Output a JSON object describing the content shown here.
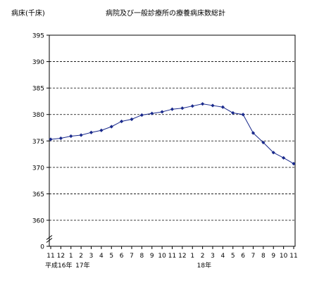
{
  "chart_data": {
    "type": "line",
    "title": "病院及び一般診療所の療養病床数総計",
    "ylabel": "病床(千床)",
    "xlabel": "",
    "categories": [
      "11",
      "12",
      "1",
      "2",
      "3",
      "4",
      "5",
      "6",
      "7",
      "8",
      "9",
      "10",
      "11",
      "12",
      "1",
      "2",
      "3",
      "4",
      "5",
      "6",
      "7",
      "8",
      "9",
      "10",
      "11"
    ],
    "era_labels": [
      {
        "at_index": 0,
        "text": "平成16年"
      },
      {
        "at_index": 3,
        "text": "17年"
      },
      {
        "at_index": 15,
        "text": "18年"
      }
    ],
    "series": [
      {
        "values": [
          375.3,
          375.5,
          375.9,
          376.1,
          376.6,
          377.0,
          377.7,
          378.7,
          379.1,
          379.9,
          380.2,
          380.5,
          381.0,
          381.2,
          381.6,
          382.0,
          381.7,
          381.4,
          380.3,
          380.0,
          376.5,
          374.7,
          372.8,
          371.8,
          370.7
        ],
        "color": "#1a2a8c"
      }
    ],
    "yticks": [
      0,
      360,
      365,
      370,
      375,
      380,
      385,
      390,
      395
    ],
    "ylim": [
      355,
      395
    ],
    "y_axis_break": true,
    "grid": true,
    "grid_style": "dashed horizontal"
  }
}
